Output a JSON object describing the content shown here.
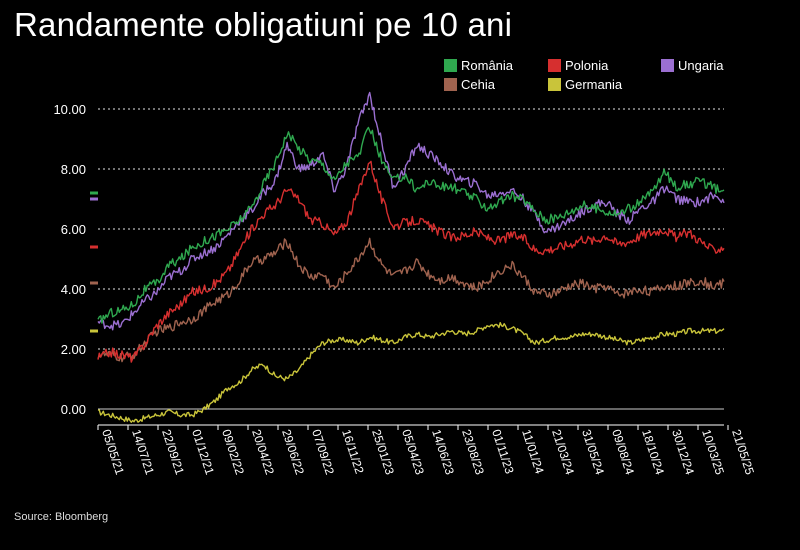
{
  "chart_data": {
    "type": "line",
    "title": "Randamente obligatiuni pe 10 ani",
    "source": "Source: Bloomberg",
    "xlabel": "",
    "ylabel": "",
    "ylim": [
      -0.5,
      11.0
    ],
    "yticks": [
      "0.00",
      "2.00",
      "4.00",
      "6.00",
      "8.00",
      "10.00"
    ],
    "ytick_values": [
      0,
      2,
      4,
      6,
      8,
      10
    ],
    "grid": true,
    "legend_position": "top-right",
    "x_ticks": [
      "05/05/21",
      "14/07/21",
      "22/09/21",
      "01/12/21",
      "09/02/22",
      "20/04/22",
      "29/06/22",
      "07/09/22",
      "16/11/22",
      "25/01/23",
      "05/04/23",
      "14/06/23",
      "23/08/23",
      "01/11/23",
      "11/01/24",
      "21/03/24",
      "31/05/24",
      "09/08/24",
      "18/10/24",
      "30/12/24",
      "10/03/25",
      "21/05/25"
    ],
    "series": [
      {
        "name": "România",
        "color": "#2fa84f",
        "last": 7.2,
        "values": [
          2.9,
          3.2,
          3.3,
          3.5,
          4.0,
          4.2,
          4.8,
          5.0,
          5.4,
          5.6,
          5.8,
          6.0,
          6.3,
          6.7,
          7.5,
          8.2,
          9.2,
          8.7,
          8.3,
          8.2,
          7.6,
          8.2,
          8.4,
          9.4,
          8.3,
          7.6,
          7.8,
          7.3,
          7.6,
          7.4,
          7.4,
          7.2,
          7.0,
          6.7,
          6.9,
          7.1,
          7.0,
          6.6,
          6.3,
          6.4,
          6.6,
          6.8,
          6.7,
          6.6,
          6.5,
          6.7,
          6.9,
          7.3,
          7.9,
          7.4,
          7.5,
          7.6,
          7.4,
          7.2
        ]
      },
      {
        "name": "Ungaria",
        "color": "#9b6fd1",
        "last": 7.0,
        "values": [
          2.9,
          2.8,
          2.8,
          3.2,
          3.6,
          3.9,
          4.4,
          4.6,
          5.0,
          5.2,
          5.4,
          5.8,
          6.3,
          6.6,
          7.2,
          7.6,
          8.8,
          8.0,
          8.1,
          8.5,
          7.3,
          8.0,
          9.5,
          10.5,
          8.9,
          7.4,
          8.0,
          8.8,
          8.5,
          8.2,
          7.8,
          7.6,
          7.5,
          7.1,
          7.2,
          7.3,
          7.0,
          6.5,
          5.9,
          6.1,
          6.3,
          6.6,
          6.8,
          6.9,
          6.5,
          6.3,
          6.7,
          6.9,
          7.4,
          7.0,
          6.9,
          6.9,
          7.1,
          7.0
        ]
      },
      {
        "name": "Polonia",
        "color": "#d62f2f",
        "last": 5.4,
        "values": [
          1.7,
          1.9,
          1.8,
          1.7,
          2.2,
          2.8,
          3.2,
          3.5,
          3.9,
          4.0,
          4.2,
          4.6,
          5.3,
          6.0,
          6.5,
          6.8,
          7.3,
          7.0,
          6.3,
          6.2,
          5.8,
          6.2,
          7.2,
          8.3,
          7.0,
          6.1,
          6.2,
          6.3,
          6.1,
          5.9,
          5.7,
          5.8,
          5.9,
          5.7,
          5.6,
          5.8,
          5.7,
          5.3,
          5.3,
          5.4,
          5.5,
          5.7,
          5.6,
          5.8,
          5.5,
          5.6,
          5.8,
          5.9,
          6.0,
          5.7,
          5.9,
          5.6,
          5.3,
          5.4
        ]
      },
      {
        "name": "Cehia",
        "color": "#a0634f",
        "last": 4.2,
        "values": [
          1.8,
          1.8,
          1.7,
          1.8,
          2.2,
          2.6,
          2.7,
          2.9,
          3.0,
          3.3,
          3.6,
          3.8,
          4.3,
          4.9,
          5.0,
          5.2,
          5.6,
          4.8,
          4.4,
          4.5,
          4.0,
          4.5,
          5.0,
          5.6,
          4.8,
          4.4,
          4.6,
          4.9,
          4.5,
          4.3,
          4.4,
          4.2,
          4.0,
          4.3,
          4.6,
          4.8,
          4.4,
          3.9,
          3.8,
          3.9,
          4.1,
          4.2,
          4.0,
          4.1,
          3.8,
          3.9,
          4.0,
          3.9,
          4.1,
          4.1,
          4.2,
          4.3,
          4.1,
          4.2
        ]
      },
      {
        "name": "Germania",
        "color": "#c9c43a",
        "last": 2.6,
        "values": [
          -0.1,
          -0.2,
          -0.3,
          -0.4,
          -0.3,
          -0.2,
          -0.1,
          -0.2,
          -0.2,
          0.0,
          0.3,
          0.7,
          0.9,
          1.3,
          1.5,
          1.1,
          1.0,
          1.3,
          1.8,
          2.2,
          2.3,
          2.3,
          2.2,
          2.4,
          2.3,
          2.2,
          2.4,
          2.5,
          2.4,
          2.5,
          2.6,
          2.5,
          2.6,
          2.8,
          2.8,
          2.7,
          2.5,
          2.2,
          2.3,
          2.4,
          2.4,
          2.5,
          2.5,
          2.4,
          2.3,
          2.2,
          2.3,
          2.4,
          2.5,
          2.5,
          2.6,
          2.6,
          2.6,
          2.6
        ]
      }
    ],
    "legend_order": [
      "România",
      "Polonia",
      "Ungaria",
      "Cehia",
      "Germania"
    ]
  }
}
